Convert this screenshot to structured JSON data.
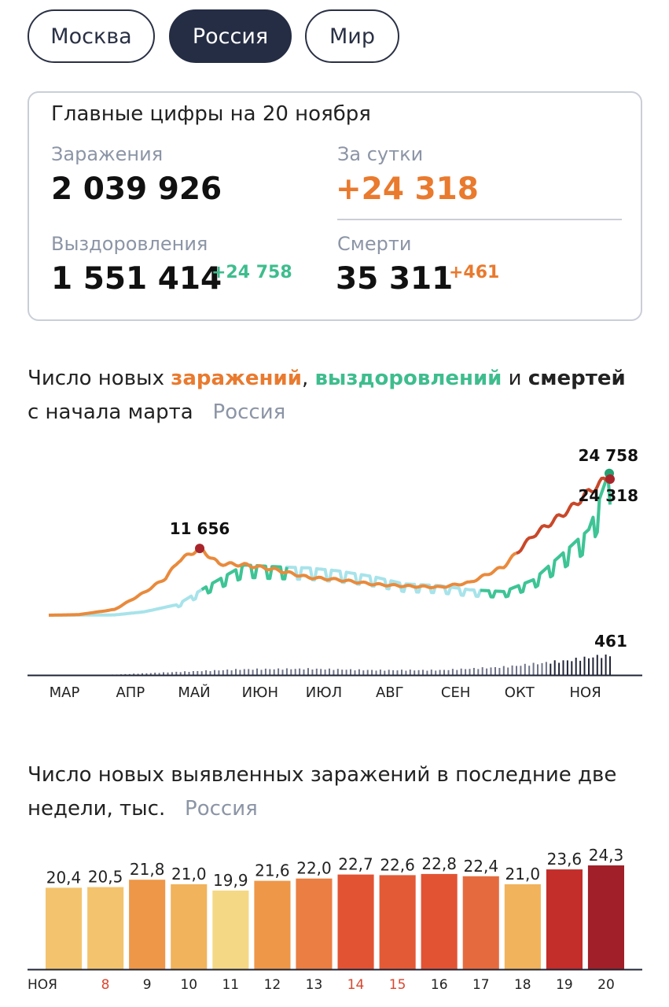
{
  "tabs": [
    {
      "label": "Москва",
      "active": false
    },
    {
      "label": "Россия",
      "active": true
    },
    {
      "label": "Мир",
      "active": false
    }
  ],
  "summary": {
    "title": "Главные цифры на 20 ноября",
    "infections_label": "Заражения",
    "infections_value": "2 039 926",
    "daily_label": "За сутки",
    "daily_value": "+24 318",
    "recoveries_label": "Выздоровления",
    "recoveries_value": "1 551 414",
    "recoveries_delta": "+24 758",
    "deaths_label": "Смерти",
    "deaths_value": "35 311",
    "deaths_delta": "+461"
  },
  "trend_section": {
    "title_prefix": "Число новых ",
    "title_infections": "заражений",
    "title_comma": ",",
    "title_recoveries": "выздоровлений",
    "title_and": " и ",
    "title_deaths": "смертей",
    "title_line2": "с начала марта",
    "region": "Россия"
  },
  "bars_section": {
    "title_line1": "Число новых выявленных заражений в последние две",
    "title_line2": "недели, тыс.",
    "region": "Россия"
  },
  "colors": {
    "infections": "#e98a3c",
    "recoveries": "#3ec495",
    "deaths": "#1f2436",
    "accent_dark": "#252d44"
  },
  "chart_data": [
    {
      "type": "line",
      "x_ticks": [
        "МАР",
        "АПР",
        "МАЙ",
        "ИЮН",
        "ИЮЛ",
        "АВГ",
        "СЕН",
        "ОКТ",
        "НОЯ"
      ],
      "series": [
        {
          "name": "заражений",
          "color": "#e98a3c",
          "x": [
            "2020-03-01",
            "2020-03-15",
            "2020-04-01",
            "2020-04-15",
            "2020-04-25",
            "2020-05-01",
            "2020-05-11",
            "2020-05-20",
            "2020-06-01",
            "2020-06-15",
            "2020-07-01",
            "2020-07-15",
            "2020-08-01",
            "2020-08-15",
            "2020-09-01",
            "2020-09-15",
            "2020-10-01",
            "2020-10-15",
            "2020-11-01",
            "2020-11-10",
            "2020-11-20"
          ],
          "values": [
            0,
            100,
            1000,
            4000,
            6500,
            9500,
            11656,
            9000,
            8800,
            8000,
            6600,
            6200,
            5400,
            5100,
            4900,
            5700,
            8500,
            14000,
            18500,
            21500,
            24318
          ]
        },
        {
          "name": "выздоровлений",
          "color": "#3ec495",
          "x": [
            "2020-03-01",
            "2020-04-01",
            "2020-04-15",
            "2020-05-01",
            "2020-05-15",
            "2020-06-01",
            "2020-06-15",
            "2020-07-01",
            "2020-07-15",
            "2020-08-01",
            "2020-08-15",
            "2020-09-01",
            "2020-09-15",
            "2020-10-01",
            "2020-10-15",
            "2020-11-01",
            "2020-11-10",
            "2020-11-20"
          ],
          "values": [
            0,
            50,
            600,
            1900,
            5000,
            8500,
            8200,
            8000,
            7500,
            6500,
            5300,
            5000,
            4300,
            4000,
            6000,
            11500,
            14500,
            24758
          ]
        },
        {
          "name": "смертей",
          "color": "#1f2436",
          "x": [
            "2020-03-01",
            "2020-04-01",
            "2020-05-01",
            "2020-06-01",
            "2020-07-01",
            "2020-08-01",
            "2020-09-01",
            "2020-10-01",
            "2020-11-01",
            "2020-11-20"
          ],
          "values": [
            0,
            10,
            70,
            130,
            140,
            110,
            110,
            180,
            330,
            461
          ]
        }
      ],
      "annotations": [
        "11 656",
        "24 758",
        "24 318",
        "461"
      ]
    },
    {
      "type": "bar",
      "categories": [
        "НОЯ",
        "8",
        "9",
        "10",
        "11",
        "12",
        "13",
        "14",
        "15",
        "16",
        "17",
        "18",
        "19",
        "20"
      ],
      "values": [
        20.4,
        20.5,
        21.8,
        21.0,
        19.9,
        21.6,
        22.0,
        22.7,
        22.6,
        22.8,
        22.4,
        21.0,
        23.6,
        24.3
      ],
      "labels": [
        "20,4",
        "20,5",
        "21,8",
        "21,0",
        "19,9",
        "21,6",
        "22,0",
        "22,7",
        "22,6",
        "22,8",
        "22,4",
        "21,0",
        "23,6",
        "24,3"
      ],
      "colors": [
        "#f3c46d",
        "#f3c46d",
        "#ee9748",
        "#f1b35b",
        "#f5d885",
        "#ee9748",
        "#ea7e43",
        "#e25334",
        "#e35a36",
        "#e25334",
        "#e56b3e",
        "#f1b35b",
        "#c32d2a",
        "#a11f28"
      ],
      "weekend": [
        false,
        true,
        false,
        false,
        false,
        false,
        false,
        true,
        true,
        false,
        false,
        false,
        false,
        false
      ]
    }
  ]
}
